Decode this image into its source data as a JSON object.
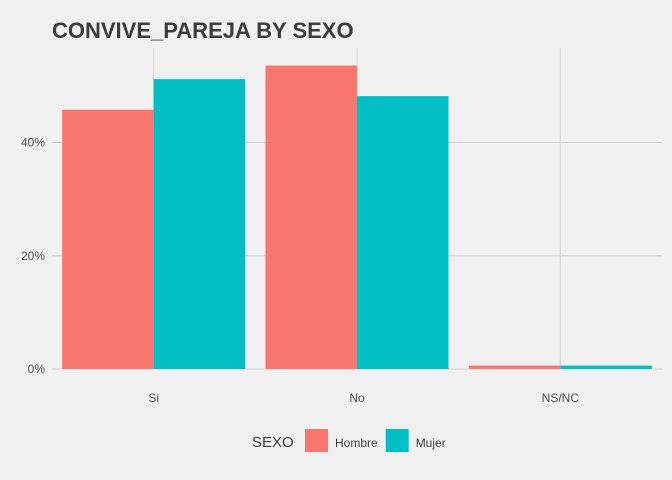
{
  "chart_data": {
    "type": "bar",
    "title": "CONVIVE_PAREJA BY SEXO",
    "xlabel": "",
    "ylabel": "",
    "categories": [
      "Si",
      "No",
      "NS/NC"
    ],
    "series": [
      {
        "name": "Hombre",
        "color": "#f8766d",
        "values": [
          45.8,
          53.6,
          0.6
        ]
      },
      {
        "name": "Mujer",
        "color": "#00bfc4",
        "values": [
          51.2,
          48.2,
          0.6
        ]
      }
    ],
    "ylim": [
      0,
      56.7
    ],
    "yticks": [
      0,
      20,
      40
    ],
    "ytick_labels": [
      "0%",
      "20%",
      "40%"
    ],
    "grid": true,
    "legend": {
      "title": "SEXO",
      "position": "bottom"
    }
  }
}
